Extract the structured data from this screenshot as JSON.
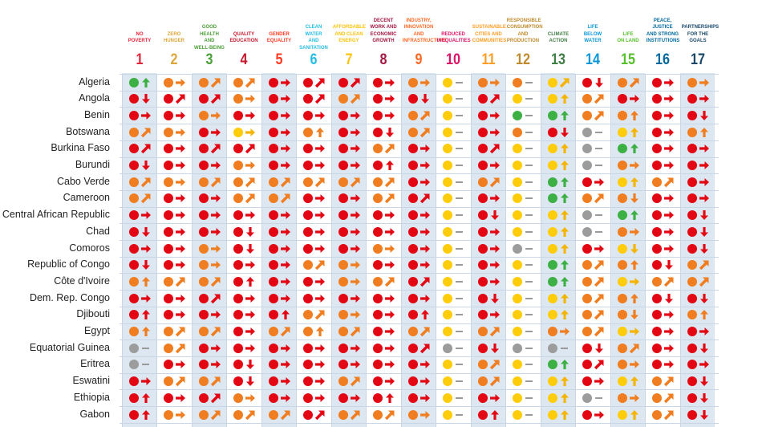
{
  "colors": {
    "red": "#e30613",
    "orange": "#f07d1f",
    "yellow": "#ffcc0a",
    "green": "#3db043",
    "grey": "#9c9c9c",
    "arrow_red": "#e30613",
    "arrow_orange": "#f07d1f",
    "arrow_yellow": "#f5b400",
    "arrow_green": "#3db043",
    "stripe_blue": "#dde7f2"
  },
  "chart_data": {
    "type": "table",
    "legend_note": "",
    "goals": [
      {
        "number": "1",
        "label": [
          "NO",
          "POVERTY"
        ],
        "color": "#e5243b"
      },
      {
        "number": "2",
        "label": [
          "ZERO",
          "HUNGER"
        ],
        "color": "#dda63a"
      },
      {
        "number": "3",
        "label": [
          "GOOD HEALTH",
          "AND",
          "WELL-BEING"
        ],
        "color": "#4c9f38"
      },
      {
        "number": "4",
        "label": [
          "QUALITY",
          "EDUCATION"
        ],
        "color": "#c5192d"
      },
      {
        "number": "5",
        "label": [
          "GENDER",
          "EQUALITY"
        ],
        "color": "#ff3a21"
      },
      {
        "number": "6",
        "label": [
          "CLEAN WATER",
          "AND",
          "SANITATION"
        ],
        "color": "#26bde2"
      },
      {
        "number": "7",
        "label": [
          "AFFORDABLE",
          "AND CLEAN",
          "ENERGY"
        ],
        "color": "#fcc30b"
      },
      {
        "number": "8",
        "label": [
          "DECENT",
          "WORK AND",
          "ECONOMIC",
          "GROWTH"
        ],
        "color": "#a21942"
      },
      {
        "number": "9",
        "label": [
          "INDUSTRY,",
          "INNOVATION",
          "AND",
          "INFRASTRUCTURE"
        ],
        "color": "#fd6925"
      },
      {
        "number": "10",
        "label": [
          "REDUCED",
          "INEQUALITIES"
        ],
        "color": "#dd1367"
      },
      {
        "number": "11",
        "label": [
          "SUSTAINABLE",
          "CITIES AND",
          "COMMUNITIES"
        ],
        "color": "#fd9d24"
      },
      {
        "number": "12",
        "label": [
          "RESPONSIBLE",
          "CONSUMPTION",
          "AND",
          "PRODUCTION"
        ],
        "color": "#bf8b2e"
      },
      {
        "number": "13",
        "label": [
          "CLIMATE",
          "ACTION"
        ],
        "color": "#3f7e44"
      },
      {
        "number": "14",
        "label": [
          "LIFE",
          "BELOW",
          "WATER"
        ],
        "color": "#0a97d9"
      },
      {
        "number": "15",
        "label": [
          "LIFE",
          "ON LAND"
        ],
        "color": "#56c02b"
      },
      {
        "number": "16",
        "label": [
          "PEACE,",
          "JUSTICE",
          "AND STRONG",
          "INSTITUTIONS"
        ],
        "color": "#00689d"
      },
      {
        "number": "17",
        "label": [
          "PARTNERSHIPS",
          "FOR THE",
          "GOALS"
        ],
        "color": "#19486a"
      }
    ],
    "status_codes": {
      "R": "red",
      "O": "orange",
      "Y": "yellow",
      "G": "green",
      "X": "grey"
    },
    "trend_codes": {
      "u": "up",
      "r": "right",
      "d": "up-right",
      "v": "down",
      "n": "none"
    },
    "rows": [
      {
        "country": "Algeria",
        "cells": [
          "Gu",
          "Or",
          "Od",
          "Od",
          "Rr",
          "Rd",
          "Rd",
          "Rr",
          "Or",
          "Yn",
          "Or",
          "On",
          "Yd",
          "Rv",
          "Od",
          "Rr",
          "Or"
        ]
      },
      {
        "country": "Angola",
        "cells": [
          "Rv",
          "Rd",
          "Rd",
          "Or",
          "Rr",
          "Rd",
          "Od",
          "Rr",
          "Rv",
          "Yn",
          "Rd",
          "Yn",
          "Yu",
          "Od",
          "Rr",
          "Rr",
          "Rr"
        ]
      },
      {
        "country": "Benin",
        "cells": [
          "Rr",
          "Rr",
          "Or",
          "Rr",
          "Rr",
          "Rr",
          "Rr",
          "Rr",
          "Od",
          "Yn",
          "Rr",
          "Gn",
          "Gu",
          "Od",
          "Ou",
          "Rr",
          "Rv"
        ]
      },
      {
        "country": "Botswana",
        "cells": [
          "Od",
          "Or",
          "Rr",
          "Yr",
          "Rr",
          "Ou",
          "Rr",
          "Rv",
          "Od",
          "Yn",
          "Rr",
          "On",
          "Rv",
          "Xn",
          "Yu",
          "Rr",
          "Ou"
        ]
      },
      {
        "country": "Burkina Faso",
        "cells": [
          "Rd",
          "Rr",
          "Rd",
          "Rd",
          "Rr",
          "Rr",
          "Rr",
          "Od",
          "Rr",
          "Yn",
          "Rd",
          "Yn",
          "Yu",
          "Xn",
          "Gu",
          "Rr",
          "Rr"
        ]
      },
      {
        "country": "Burundi",
        "cells": [
          "Rv",
          "Rr",
          "Rr",
          "Or",
          "Rr",
          "Rr",
          "Rr",
          "Ru",
          "Rr",
          "Yn",
          "Rr",
          "Yn",
          "Yu",
          "Xn",
          "Or",
          "Rr",
          "Rr"
        ]
      },
      {
        "country": "Cabo Verde",
        "cells": [
          "Od",
          "Or",
          "Od",
          "Od",
          "Od",
          "Od",
          "Od",
          "Od",
          "Rr",
          "Yn",
          "Od",
          "Yn",
          "Gu",
          "Rr",
          "Yu",
          "Od",
          "Rr"
        ]
      },
      {
        "country": "Cameroon",
        "cells": [
          "Od",
          "Rr",
          "Rr",
          "Od",
          "Od",
          "Rr",
          "Rr",
          "Od",
          "Rd",
          "Yn",
          "Rr",
          "Yn",
          "Gu",
          "Od",
          "Ov",
          "Rr",
          "Rr"
        ]
      },
      {
        "country": "Central African Republic",
        "cells": [
          "Rr",
          "Rr",
          "Rr",
          "Rr",
          "Rr",
          "Rr",
          "Rr",
          "Rr",
          "Rr",
          "Yn",
          "Rv",
          "Yn",
          "Yu",
          "Xn",
          "Gu",
          "Rr",
          "Rv"
        ]
      },
      {
        "country": "Chad",
        "cells": [
          "Rv",
          "Rr",
          "Rr",
          "Rv",
          "Rr",
          "Rr",
          "Rr",
          "Rr",
          "Rr",
          "Yn",
          "Rr",
          "Yn",
          "Yu",
          "Xn",
          "Or",
          "Rr",
          "Rv"
        ]
      },
      {
        "country": "Comoros",
        "cells": [
          "Rr",
          "Rr",
          "Or",
          "Rv",
          "Rr",
          "Rr",
          "Rr",
          "Or",
          "Rr",
          "Yn",
          "Rr",
          "Xn",
          "Yu",
          "Rr",
          "Yv",
          "Rr",
          "Rv"
        ]
      },
      {
        "country": "Republic of Congo",
        "cells": [
          "Rv",
          "Rr",
          "Or",
          "Rr",
          "Rr",
          "Od",
          "Or",
          "Rr",
          "Rr",
          "Yn",
          "Rr",
          "Yn",
          "Gu",
          "Od",
          "Ou",
          "Rv",
          "Od"
        ]
      },
      {
        "country": "Côte d'Ivoire",
        "cells": [
          "Ou",
          "Od",
          "Od",
          "Ru",
          "Rr",
          "Rr",
          "Or",
          "Od",
          "Rd",
          "Yn",
          "Rr",
          "Yn",
          "Gu",
          "Od",
          "Yr",
          "Od",
          "Od"
        ]
      },
      {
        "country": "Dem. Rep. Congo",
        "cells": [
          "Rr",
          "Rr",
          "Rd",
          "Rr",
          "Rr",
          "Rr",
          "Rr",
          "Rr",
          "Rr",
          "Yn",
          "Rv",
          "Yn",
          "Yu",
          "Od",
          "Ou",
          "Rv",
          "Rv"
        ]
      },
      {
        "country": "Djibouti",
        "cells": [
          "Ru",
          "Rr",
          "Rr",
          "Rr",
          "Ru",
          "Od",
          "Or",
          "Rr",
          "Ru",
          "Yn",
          "Rr",
          "Yn",
          "Yu",
          "Od",
          "Ov",
          "Rr",
          "Ou"
        ]
      },
      {
        "country": "Egypt",
        "cells": [
          "Ou",
          "Od",
          "Od",
          "Rr",
          "Od",
          "Ou",
          "Od",
          "Rr",
          "Od",
          "Yn",
          "Od",
          "Yn",
          "Or",
          "Od",
          "Yr",
          "Rr",
          "Rr"
        ]
      },
      {
        "country": "Equatorial Guinea",
        "cells": [
          "Xn",
          "Od",
          "Rr",
          "Rr",
          "Rr",
          "Rr",
          "Rr",
          "Rr",
          "Rd",
          "Xn",
          "Rv",
          "Xn",
          "Xn",
          "Rv",
          "Od",
          "Rr",
          "Rv"
        ]
      },
      {
        "country": "Eritrea",
        "cells": [
          "Xn",
          "Rr",
          "Rr",
          "Rv",
          "Rr",
          "Rr",
          "Rr",
          "Rr",
          "Rr",
          "Yn",
          "Od",
          "Yn",
          "Gu",
          "Rd",
          "Or",
          "Rr",
          "Rr"
        ]
      },
      {
        "country": "Eswatini",
        "cells": [
          "Rr",
          "Od",
          "Od",
          "Rv",
          "Rr",
          "Rr",
          "Od",
          "Rr",
          "Rr",
          "Yn",
          "Od",
          "Yn",
          "Yu",
          "Rr",
          "Yu",
          "Od",
          "Rv"
        ]
      },
      {
        "country": "Ethiopia",
        "cells": [
          "Ru",
          "Rr",
          "Rd",
          "Or",
          "Rr",
          "Rr",
          "Rr",
          "Ru",
          "Rr",
          "Yn",
          "Rr",
          "Yn",
          "Yu",
          "Xn",
          "Or",
          "Od",
          "Rv"
        ]
      },
      {
        "country": "Gabon",
        "cells": [
          "Ru",
          "Or",
          "Od",
          "Od",
          "Od",
          "Rd",
          "Od",
          "Od",
          "Or",
          "Yn",
          "Ru",
          "Yn",
          "Yu",
          "Rr",
          "Yu",
          "Od",
          "Rv"
        ]
      }
    ]
  }
}
